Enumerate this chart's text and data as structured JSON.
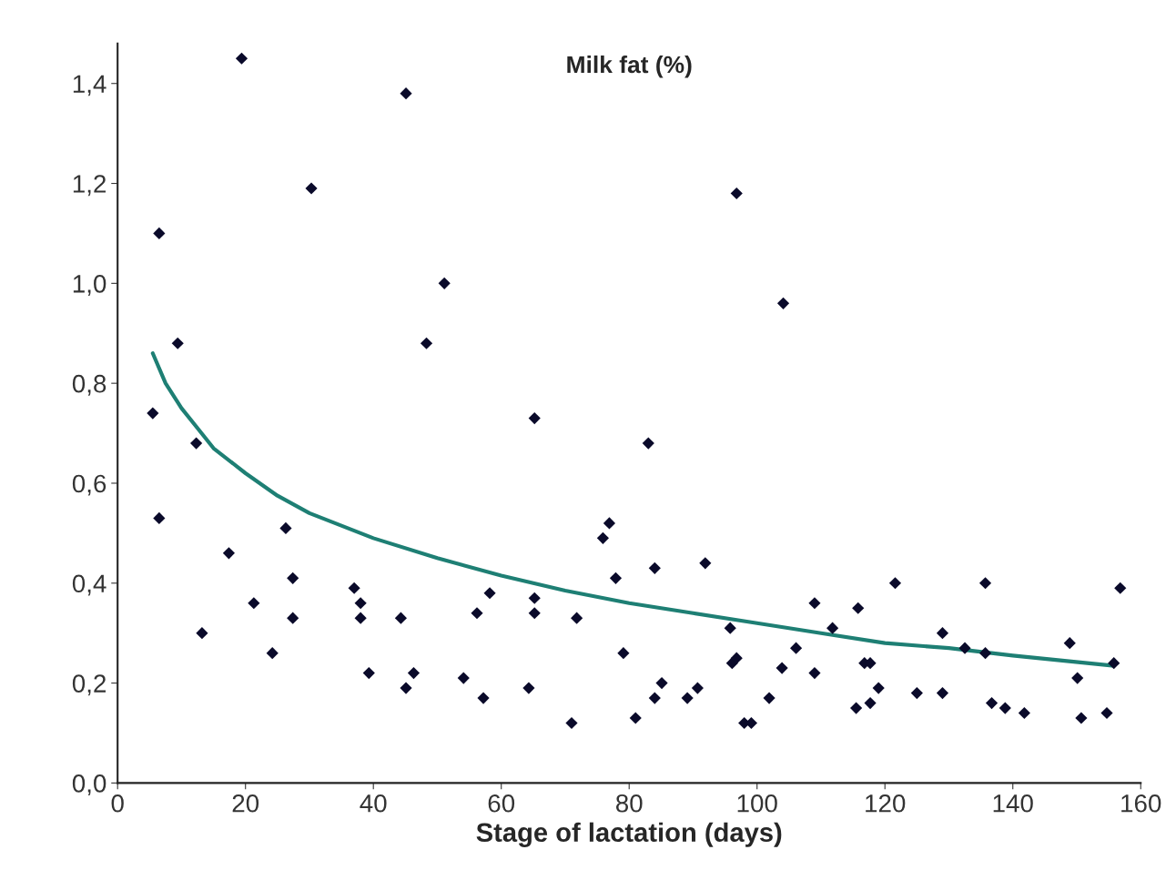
{
  "chart_data": {
    "type": "scatter",
    "title": "Milk fat (%)",
    "xlabel": "Stage of lactation (days)",
    "xlim": [
      0,
      160
    ],
    "xticks": [
      0,
      20,
      40,
      60,
      80,
      100,
      120,
      140,
      160
    ],
    "ylim": [
      0,
      1.48
    ],
    "yticks": [
      {
        "value": 0,
        "label": "0,0"
      },
      {
        "value": 0.2,
        "label": "0,2"
      },
      {
        "value": 0.4,
        "label": "0,4"
      },
      {
        "value": 0.6,
        "label": "0,6"
      },
      {
        "value": 0.8,
        "label": "0,8"
      },
      {
        "value": 1.0,
        "label": "1,0"
      },
      {
        "value": 1.2,
        "label": "1,2"
      },
      {
        "value": 1.4,
        "label": "1,4"
      }
    ],
    "grid": false,
    "legend": false,
    "marker": "diamond",
    "series": [
      {
        "color": "#0a0a2a",
        "x": [
          5.5,
          6.5,
          6.5,
          9.4,
          12.3,
          13.2,
          17.4,
          19.4,
          21.3,
          24.2,
          26.3,
          27.4,
          27.4,
          30.3,
          37.0,
          38.0,
          38.0,
          39.3,
          44.3,
          45.1,
          45.1,
          46.3,
          48.3,
          51.1,
          54.1,
          56.2,
          57.2,
          58.2,
          64.3,
          65.2,
          65.2,
          65.2,
          71.0,
          71.8,
          75.9,
          76.9,
          77.9,
          79.1,
          81.0,
          83.0,
          84.0,
          84.0,
          85.1,
          89.1,
          90.7,
          91.9,
          95.8,
          96.1,
          96.8,
          96.8,
          98.0,
          99.1,
          101.9,
          103.9,
          104.1,
          106.1,
          109.0,
          109.0,
          111.8,
          115.5,
          115.8,
          116.8,
          117.7,
          117.7,
          119.0,
          121.6,
          125.0,
          129.0,
          129.0,
          132.5,
          135.7,
          135.7,
          136.7,
          138.8,
          141.8,
          148.9,
          150.1,
          150.7,
          154.7,
          155.8,
          156.8
        ],
        "values": [
          0.74,
          1.1,
          0.53,
          0.88,
          0.68,
          0.3,
          0.46,
          1.45,
          0.36,
          0.26,
          0.51,
          0.41,
          0.33,
          1.19,
          0.39,
          0.36,
          0.33,
          0.22,
          0.33,
          1.38,
          0.19,
          0.22,
          0.88,
          1.0,
          0.21,
          0.34,
          0.17,
          0.38,
          0.19,
          0.73,
          0.37,
          0.34,
          0.12,
          0.33,
          0.49,
          0.52,
          0.41,
          0.26,
          0.13,
          0.68,
          0.43,
          0.17,
          0.2,
          0.17,
          0.19,
          0.44,
          0.31,
          0.24,
          0.25,
          1.18,
          0.12,
          0.12,
          0.17,
          0.23,
          0.96,
          0.27,
          0.22,
          0.36,
          0.31,
          0.15,
          0.35,
          0.24,
          0.24,
          0.16,
          0.19,
          0.4,
          0.18,
          0.3,
          0.18,
          0.27,
          0.4,
          0.26,
          0.16,
          0.15,
          0.14,
          0.28,
          0.21,
          0.13,
          0.14,
          0.24,
          0.39
        ]
      },
      {
        "type": "line",
        "color": "#1e7f74",
        "marker": "none",
        "x": [
          5.5,
          7.5,
          10,
          12.5,
          15,
          20,
          25,
          30,
          40,
          50,
          60,
          70,
          80,
          90,
          100,
          110,
          120,
          130,
          140,
          155.5
        ],
        "values": [
          0.86,
          0.8,
          0.75,
          0.71,
          0.67,
          0.62,
          0.575,
          0.54,
          0.49,
          0.45,
          0.415,
          0.385,
          0.36,
          0.34,
          0.32,
          0.3,
          0.28,
          0.27,
          0.255,
          0.235
        ]
      }
    ]
  }
}
